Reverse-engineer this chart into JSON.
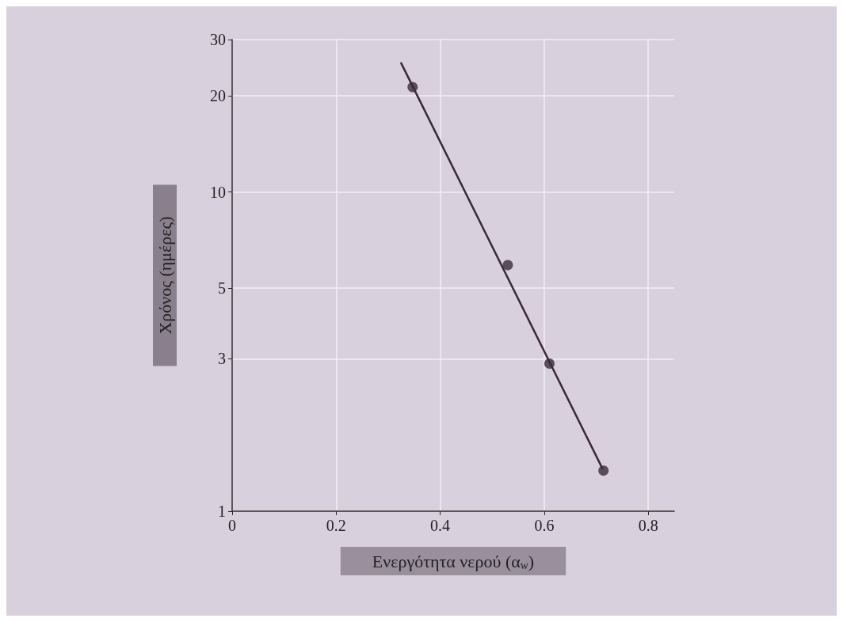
{
  "chart_data": {
    "type": "scatter",
    "xlabel": "Ενεργότητα νερού (α$_{w}$)",
    "ylabel": "Χρόνος (ημέρες)",
    "x": [
      0.347,
      0.53,
      0.61,
      0.714
    ],
    "series": [
      {
        "color": "#3a2a3a",
        "values": [
          21.3,
          5.9,
          2.9,
          1.34
        ]
      },
      {
        "type": "line",
        "color": "#3a2a3a",
        "x": [
          0.325,
          0.712
        ],
        "values": [
          25.3,
          1.36
        ],
        "marker": "none"
      }
    ],
    "xlim": [
      0,
      0.85
    ],
    "xticks": [
      0,
      0.2,
      0.4,
      0.6,
      0.8
    ],
    "ylim": [
      1,
      30
    ],
    "yticks": [
      1,
      3,
      5,
      10,
      20,
      30
    ],
    "log": "y",
    "grid": true,
    "marker": "circle"
  }
}
